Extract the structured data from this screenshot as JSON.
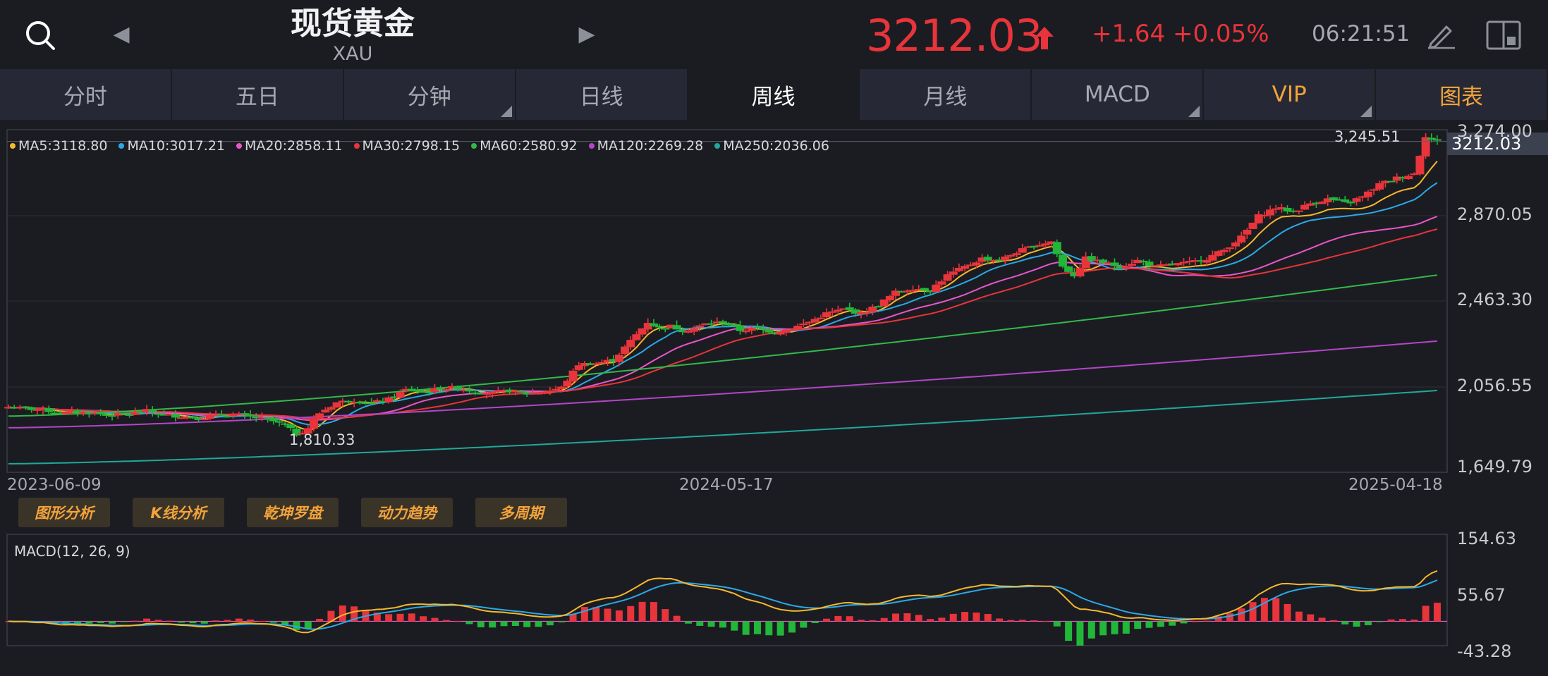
{
  "header": {
    "title": "现货黄金",
    "code": "XAU",
    "price": "3212.03",
    "change": "+1.64 +0.05%",
    "time": "06:21:51"
  },
  "tabs": [
    {
      "label": "分时",
      "corner": false
    },
    {
      "label": "五日",
      "corner": false
    },
    {
      "label": "分钟",
      "corner": true
    },
    {
      "label": "日线",
      "corner": false
    },
    {
      "label": "周线",
      "corner": false,
      "active": true
    },
    {
      "label": "月线",
      "corner": false
    },
    {
      "label": "MACD",
      "corner": true
    },
    {
      "label": "VIP",
      "corner": true,
      "gold": true
    },
    {
      "label": "图表",
      "corner": false,
      "gold": true
    }
  ],
  "ma_legend": [
    {
      "label": "MA5:3118.80",
      "color": "#f5b82e"
    },
    {
      "label": "MA10:3017.21",
      "color": "#2aa9e8"
    },
    {
      "label": "MA20:2858.11",
      "color": "#e856c9"
    },
    {
      "label": "MA30:2798.15",
      "color": "#e8343b"
    },
    {
      "label": "MA60:2580.92",
      "color": "#34b84a"
    },
    {
      "label": "MA120:2269.28",
      "color": "#b246c8"
    },
    {
      "label": "MA250:2036.06",
      "color": "#1fa89a"
    }
  ],
  "price_axis": [
    "3,274.00",
    "2,870.05",
    "2,463.30",
    "2,056.55",
    "1,649.79"
  ],
  "current_price_tag": "3212.03",
  "high_annotation": "3,245.51",
  "low_annotation": "1,810.33",
  "dates": [
    "2023-06-09",
    "2024-05-17",
    "2025-04-18"
  ],
  "tools": [
    "图形分析",
    "K线分析",
    "乾坤罗盘",
    "动力趋势",
    "多周期"
  ],
  "macd": {
    "label": "MACD(12, 26, 9)",
    "axis": [
      "154.63",
      "55.67",
      "-43.28"
    ]
  },
  "colors": {
    "up": "#e8343b",
    "down": "#22b63a",
    "accent_gold": "#f2a33a"
  },
  "chart_data": {
    "type": "candlestick",
    "x_range": [
      "2023-06-09",
      "2025-04-18"
    ],
    "ylim": [
      1649.79,
      3274.0
    ],
    "anchors": [
      [
        0,
        1958
      ],
      [
        3,
        1950
      ],
      [
        6,
        1945
      ],
      [
        9,
        1930
      ],
      [
        12,
        1935
      ],
      [
        15,
        1928
      ],
      [
        18,
        1920
      ],
      [
        21,
        1925
      ],
      [
        24,
        1940
      ],
      [
        27,
        1920
      ],
      [
        30,
        1915
      ],
      [
        33,
        1905
      ],
      [
        36,
        1920
      ],
      [
        39,
        1925
      ],
      [
        42,
        1910
      ],
      [
        45,
        1900
      ],
      [
        48,
        1870
      ],
      [
        50,
        1830
      ],
      [
        52,
        1860
      ],
      [
        54,
        1930
      ],
      [
        57,
        1980
      ],
      [
        60,
        1990
      ],
      [
        63,
        1975
      ],
      [
        66,
        1995
      ],
      [
        69,
        2040
      ],
      [
        72,
        2030
      ],
      [
        75,
        2045
      ],
      [
        78,
        2050
      ],
      [
        81,
        2030
      ],
      [
        84,
        2025
      ],
      [
        87,
        2035
      ],
      [
        90,
        2020
      ],
      [
        93,
        2030
      ],
      [
        96,
        2050
      ],
      [
        99,
        2160
      ],
      [
        102,
        2165
      ],
      [
        105,
        2180
      ],
      [
        107,
        2240
      ],
      [
        109,
        2300
      ],
      [
        111,
        2360
      ],
      [
        113,
        2330
      ],
      [
        115,
        2340
      ],
      [
        117,
        2320
      ],
      [
        119,
        2330
      ],
      [
        121,
        2350
      ],
      [
        124,
        2360
      ],
      [
        127,
        2320
      ],
      [
        130,
        2330
      ],
      [
        133,
        2310
      ],
      [
        136,
        2330
      ],
      [
        139,
        2360
      ],
      [
        142,
        2400
      ],
      [
        145,
        2420
      ],
      [
        148,
        2400
      ],
      [
        151,
        2440
      ],
      [
        154,
        2500
      ],
      [
        157,
        2520
      ],
      [
        160,
        2510
      ],
      [
        163,
        2580
      ],
      [
        166,
        2620
      ],
      [
        169,
        2660
      ],
      [
        172,
        2650
      ],
      [
        175,
        2690
      ],
      [
        178,
        2720
      ],
      [
        181,
        2740
      ],
      [
        183,
        2620
      ],
      [
        185,
        2580
      ],
      [
        187,
        2660
      ],
      [
        190,
        2640
      ],
      [
        193,
        2620
      ],
      [
        196,
        2650
      ],
      [
        199,
        2620
      ],
      [
        202,
        2630
      ],
      [
        205,
        2640
      ],
      [
        208,
        2660
      ],
      [
        211,
        2700
      ],
      [
        214,
        2760
      ],
      [
        217,
        2860
      ],
      [
        220,
        2900
      ],
      [
        223,
        2880
      ],
      [
        226,
        2920
      ],
      [
        229,
        2940
      ],
      [
        232,
        2920
      ],
      [
        235,
        2950
      ],
      [
        238,
        3010
      ],
      [
        241,
        3040
      ],
      [
        244,
        3060
      ],
      [
        246,
        3240
      ],
      [
        247,
        3220
      ],
      [
        248,
        3212
      ]
    ],
    "ma_end_values": {
      "MA5": 3118.8,
      "MA10": 3017.21,
      "MA20": 2858.11,
      "MA30": 2798.15,
      "MA60": 2580.92,
      "MA120": 2269.28,
      "MA250": 2036.06
    },
    "macd_ylim": [
      -43.28,
      154.63
    ]
  }
}
